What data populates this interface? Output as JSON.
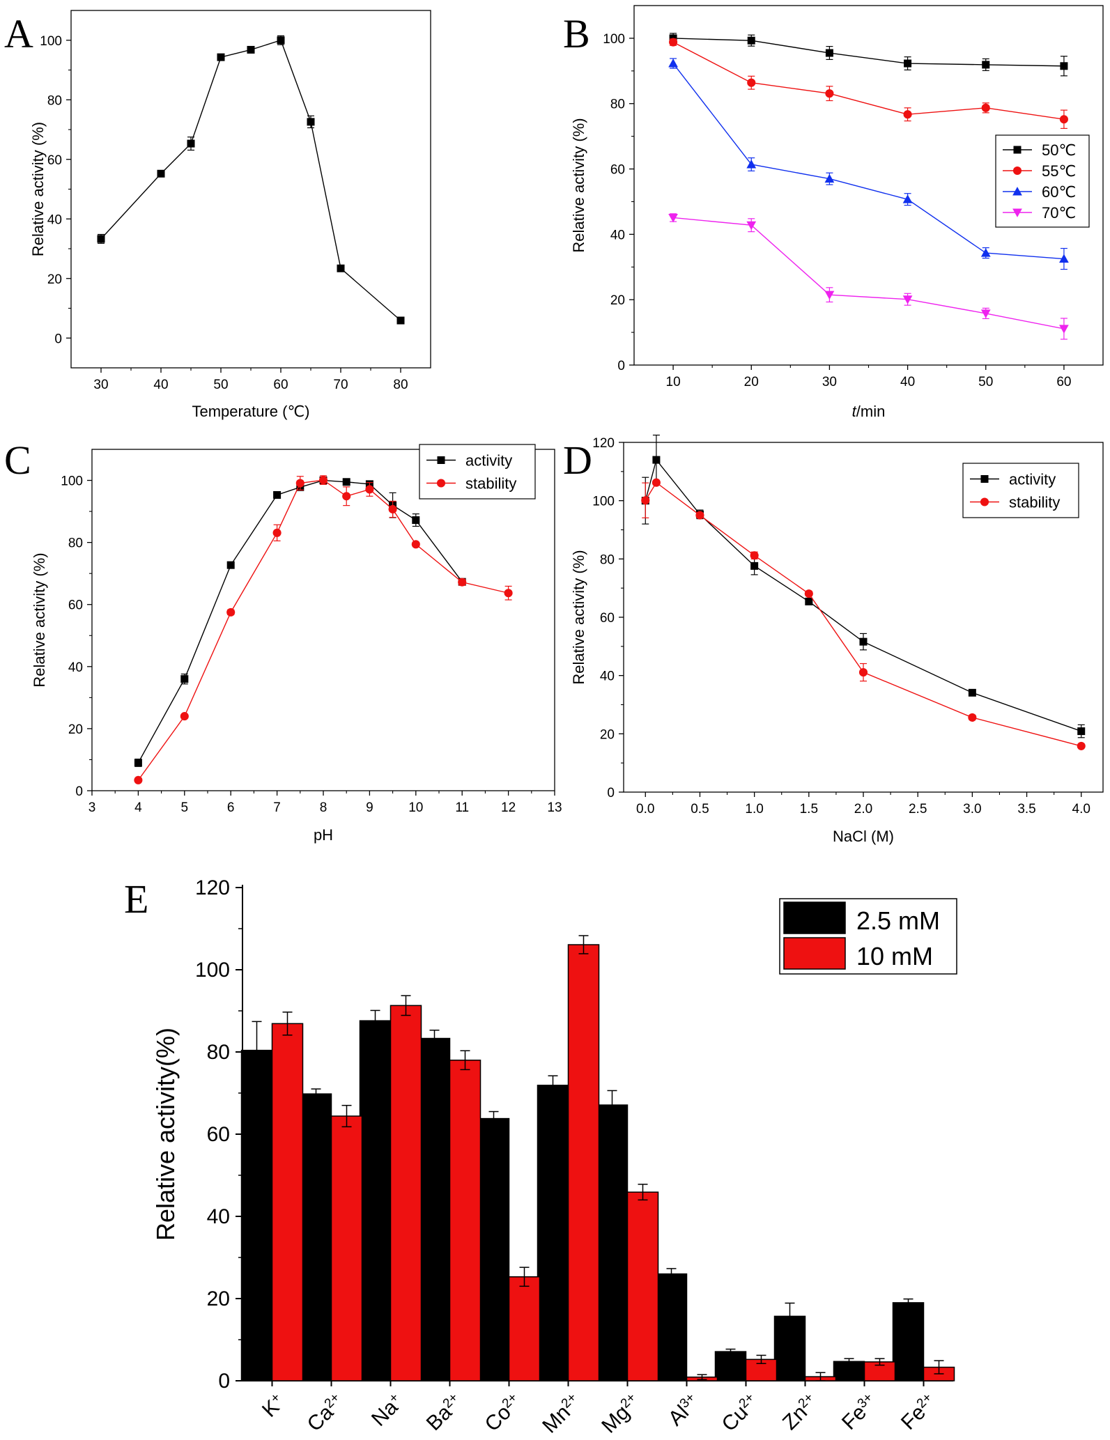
{
  "colors": {
    "black": "#000000",
    "red": "#ee1111",
    "blue": "#1030ee",
    "magenta": "#ee22ee",
    "bar_black": "#000000",
    "bar_red": "#ee1111"
  },
  "chart_data": [
    {
      "id": "A",
      "panel_label": "A",
      "type": "line",
      "xlabel": "Temperature (℃)",
      "ylabel": "Relative activity (%)",
      "xlim": [
        25,
        85
      ],
      "ylim": [
        -10,
        110
      ],
      "xticks": [
        "30",
        "40",
        "50",
        "60",
        "70",
        "80"
      ],
      "yticks": [
        "0",
        "20",
        "40",
        "60",
        "80",
        "100"
      ],
      "legend": null,
      "series": [
        {
          "name": "activity",
          "color": "black",
          "marker": "square",
          "x": [
            30,
            40,
            45,
            50,
            55,
            60,
            65,
            70,
            80
          ],
          "y": [
            33.3,
            55.2,
            65.3,
            94.3,
            96.8,
            100,
            72.6,
            23.4,
            5.9
          ],
          "err": [
            1.5,
            0.8,
            2.2,
            0.8,
            0.8,
            1.5,
            2.0,
            0.6,
            0.4
          ]
        }
      ]
    },
    {
      "id": "B",
      "panel_label": "B",
      "type": "line",
      "xlabel_italic": "t",
      "xlabel_rest": "/min",
      "ylabel": "Relative activity (%)",
      "xlim": [
        5,
        65
      ],
      "ylim": [
        0,
        110
      ],
      "xticks": [
        "10",
        "20",
        "30",
        "40",
        "50",
        "60"
      ],
      "yticks": [
        "0",
        "20",
        "40",
        "60",
        "80",
        "100"
      ],
      "legend": "right",
      "series": [
        {
          "name": "50℃",
          "color": "black",
          "marker": "square",
          "x": [
            10,
            20,
            30,
            40,
            50,
            60
          ],
          "y": [
            100,
            99.3,
            95.5,
            92.3,
            91.9,
            91.5
          ],
          "err": [
            1.5,
            1.7,
            2.0,
            2.0,
            1.8,
            3.0
          ]
        },
        {
          "name": "55℃",
          "color": "red",
          "marker": "circle",
          "x": [
            10,
            20,
            30,
            40,
            50,
            60
          ],
          "y": [
            98.8,
            86.4,
            83.1,
            76.7,
            78.7,
            75.2
          ],
          "err": [
            1.0,
            2.0,
            2.2,
            2.0,
            1.5,
            2.8
          ]
        },
        {
          "name": "60℃",
          "color": "blue",
          "marker": "triangle-up",
          "x": [
            10,
            20,
            30,
            40,
            50,
            60
          ],
          "y": [
            92.3,
            61.4,
            57.0,
            50.7,
            34.3,
            32.5
          ],
          "err": [
            1.5,
            2.0,
            1.8,
            1.8,
            1.6,
            3.2
          ]
        },
        {
          "name": "70℃",
          "color": "magenta",
          "marker": "triangle-down",
          "x": [
            10,
            20,
            30,
            40,
            50,
            60
          ],
          "y": [
            45.1,
            42.8,
            21.5,
            20.1,
            15.8,
            11.1
          ],
          "err": [
            1.2,
            2.0,
            2.2,
            1.8,
            1.6,
            3.2
          ]
        }
      ]
    },
    {
      "id": "C",
      "panel_label": "C",
      "type": "line",
      "xlabel": "pH",
      "ylabel": "Relative activity (%)",
      "xlim": [
        3,
        13
      ],
      "ylim": [
        0,
        110
      ],
      "xticks": [
        "3",
        "4",
        "5",
        "6",
        "7",
        "8",
        "9",
        "10",
        "11",
        "12",
        "13"
      ],
      "yticks": [
        "0",
        "20",
        "40",
        "60",
        "80",
        "100"
      ],
      "legend": "top-right",
      "series": [
        {
          "name": "activity",
          "color": "black",
          "marker": "square",
          "x": [
            4,
            5,
            6,
            7,
            7.5,
            8,
            8.5,
            9,
            9.5,
            10,
            11
          ],
          "y": [
            9.0,
            36.0,
            72.7,
            95.3,
            97.8,
            100,
            99.5,
            98.8,
            92.0,
            87.2,
            67.3
          ],
          "err": [
            1.2,
            1.6,
            0.8,
            0.6,
            1.0,
            1.0,
            0.6,
            0.8,
            4.0,
            2.0,
            1.0
          ]
        },
        {
          "name": "stability",
          "color": "red",
          "marker": "circle",
          "x": [
            4,
            5,
            6,
            7,
            7.5,
            8,
            8.5,
            9,
            9.5,
            10,
            11,
            12
          ],
          "y": [
            3.4,
            24.0,
            57.5,
            83.1,
            99.1,
            100.1,
            94.9,
            97.1,
            90.7,
            79.4,
            67.2,
            63.7
          ],
          "err": [
            0.5,
            0.5,
            0.8,
            2.6,
            2.2,
            1.4,
            3.0,
            2.2,
            2.6,
            0.6,
            1.0,
            2.2
          ]
        }
      ]
    },
    {
      "id": "D",
      "panel_label": "D",
      "type": "line",
      "xlabel": "NaCl (M)",
      "ylabel": "Relative activity (%)",
      "xlim": [
        -0.2,
        4.2
      ],
      "ylim": [
        0,
        120
      ],
      "xtick_values": [
        0,
        0.5,
        1,
        1.5,
        2,
        2.5,
        3,
        3.5,
        4
      ],
      "xticks": [
        "0.0",
        "0.5",
        "1.0",
        "1.5",
        "2.0",
        "2.5",
        "3.0",
        "3.5",
        "4.0"
      ],
      "yticks": [
        "0",
        "20",
        "40",
        "60",
        "80",
        "100",
        "120"
      ],
      "legend": "top-right",
      "series": [
        {
          "name": "activity",
          "color": "black",
          "marker": "square",
          "x": [
            0,
            0.1,
            0.5,
            1,
            1.5,
            2,
            3,
            4
          ],
          "y": [
            100,
            114,
            95.3,
            77.6,
            65.4,
            51.6,
            34.1,
            20.9
          ],
          "err": [
            8.0,
            8.5,
            1.5,
            3.0,
            1.0,
            2.8,
            0.8,
            2.2
          ]
        },
        {
          "name": "stability",
          "color": "red",
          "marker": "circle",
          "x": [
            0,
            0.1,
            0.5,
            1,
            1.5,
            2,
            3,
            4
          ],
          "y": [
            100.1,
            106.2,
            95.0,
            81.2,
            68.1,
            41.1,
            25.6,
            15.8
          ],
          "err": [
            6.0,
            0.8,
            0.8,
            1.2,
            0.8,
            3.0,
            0.8,
            0.6
          ]
        }
      ]
    },
    {
      "id": "E",
      "panel_label": "E",
      "type": "bar",
      "ylabel": "Relative activity(%)",
      "ylim": [
        0,
        120
      ],
      "yticks": [
        "0",
        "20",
        "40",
        "60",
        "80",
        "100",
        "120"
      ],
      "legend": "top-right",
      "categories": [
        {
          "base": "K",
          "sup": "+"
        },
        {
          "base": "Ca",
          "sup": "2+"
        },
        {
          "base": "Na",
          "sup": "+"
        },
        {
          "base": "Ba",
          "sup": "2+"
        },
        {
          "base": "Co",
          "sup": "2+"
        },
        {
          "base": "Mn",
          "sup": "2+"
        },
        {
          "base": "Mg",
          "sup": "2+"
        },
        {
          "base": "Al",
          "sup": "3+"
        },
        {
          "base": "Cu",
          "sup": "2+"
        },
        {
          "base": "Zn",
          "sup": "2+"
        },
        {
          "base": "Fe",
          "sup": "3+"
        },
        {
          "base": "Fe",
          "sup": "2+"
        }
      ],
      "series": [
        {
          "name": "2.5 mM",
          "color": "bar_black",
          "values": [
            80.4,
            69.8,
            87.6,
            83.3,
            63.8,
            71.9,
            67.1,
            26.0,
            7.1,
            15.7,
            4.7,
            19.0
          ],
          "err": [
            7.0,
            1.2,
            2.5,
            2.0,
            1.7,
            2.3,
            3.5,
            1.3,
            0.6,
            3.2,
            0.7,
            0.9
          ]
        },
        {
          "name": "10 mM",
          "color": "bar_red",
          "values": [
            86.9,
            64.4,
            91.3,
            78.0,
            25.3,
            106.1,
            45.9,
            0.9,
            5.2,
            1.0,
            4.6,
            3.3
          ],
          "err": [
            2.8,
            2.6,
            2.4,
            2.3,
            2.3,
            2.2,
            1.9,
            0.6,
            1.0,
            1.0,
            0.8,
            1.6
          ]
        }
      ]
    }
  ]
}
